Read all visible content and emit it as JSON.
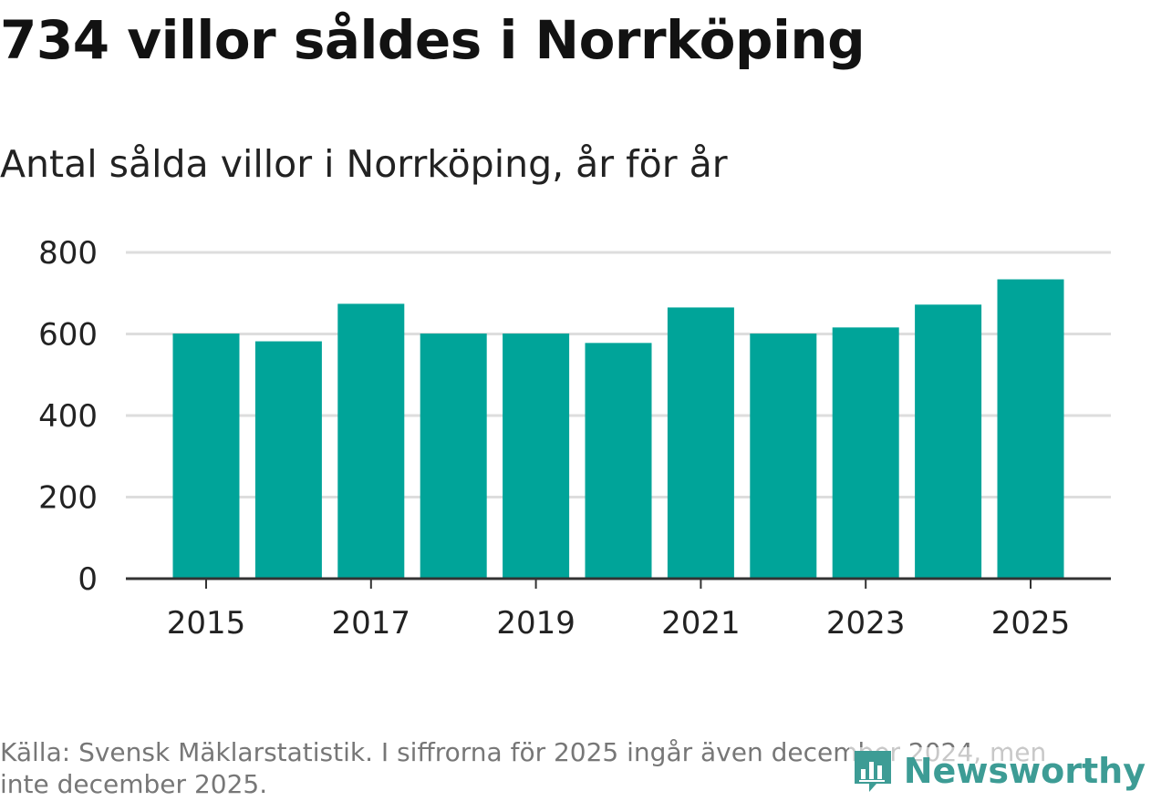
{
  "header": {
    "title": "734 villor såldes i Norrköping",
    "subtitle": "Antal sålda villor i Norrköping, år för år"
  },
  "footer": {
    "source_note": "Källa: Svensk Mäklarstatistik. I siffrorna för 2025 ingår även december 2024, men inte december 2025.",
    "brand": "Newsworthy"
  },
  "colors": {
    "bar": "#00a499",
    "grid": "#dddddd",
    "axis": "#333333",
    "brand": "#3d9c95"
  },
  "chart_data": {
    "type": "bar",
    "title": "Antal sålda villor i Norrköping, år för år",
    "xlabel": "",
    "ylabel": "",
    "categories": [
      "2015",
      "2016",
      "2017",
      "2018",
      "2019",
      "2020",
      "2021",
      "2022",
      "2023",
      "2024",
      "2025"
    ],
    "x_tick_labels": [
      "2015",
      "2017",
      "2019",
      "2021",
      "2023",
      "2025"
    ],
    "values": [
      601,
      582,
      674,
      601,
      601,
      578,
      665,
      601,
      616,
      672,
      734
    ],
    "ylim": [
      0,
      800
    ],
    "y_ticks": [
      0,
      200,
      400,
      600,
      800
    ],
    "grid": true
  }
}
